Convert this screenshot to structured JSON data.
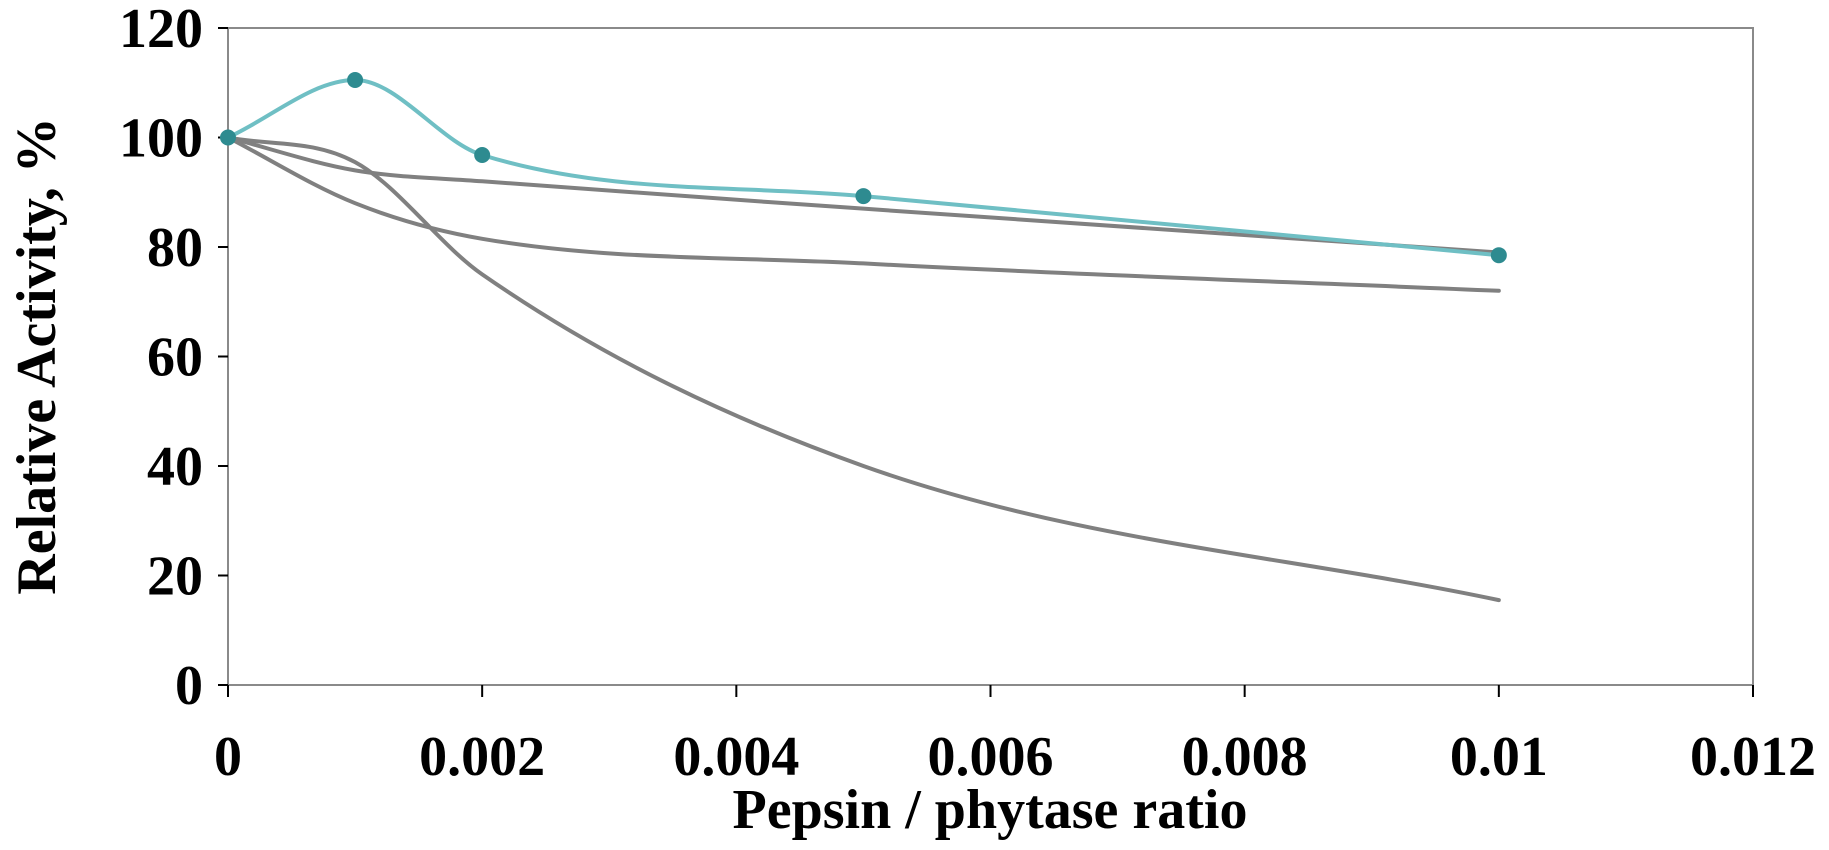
{
  "chart_data": {
    "type": "line",
    "title": "",
    "xlabel": "Pepsin / phytase ratio",
    "ylabel": "Relative Activity, %",
    "xlim": [
      0,
      0.012
    ],
    "ylim": [
      0,
      120
    ],
    "grid": false,
    "legend": "none",
    "x_ticks": [
      "0",
      "0.002",
      "0.004",
      "0.006",
      "0.008",
      "0.01",
      "0.012"
    ],
    "y_ticks": [
      "0",
      "20",
      "40",
      "60",
      "80",
      "100",
      "120"
    ],
    "x_tick_values": [
      0,
      0.002,
      0.004,
      0.006,
      0.008,
      0.01,
      0.012
    ],
    "y_tick_values": [
      0,
      20,
      40,
      60,
      80,
      100,
      120
    ],
    "series": [
      {
        "color": "#6fbfc4",
        "marker_color": "#2e8b90",
        "markers": true,
        "x": [
          0,
          0.001,
          0.002,
          0.005,
          0.01
        ],
        "y": [
          100,
          110.5,
          96.8,
          89.3,
          78.5
        ]
      },
      {
        "color": "#808080",
        "markers": false,
        "x": [
          0,
          0.001,
          0.002,
          0.005,
          0.01
        ],
        "y": [
          100,
          94.0,
          92.0,
          87.0,
          79.0
        ]
      },
      {
        "color": "#808080",
        "markers": false,
        "x": [
          0,
          0.001,
          0.002,
          0.005,
          0.01
        ],
        "y": [
          100,
          88.0,
          81.5,
          77.0,
          72.0
        ]
      },
      {
        "color": "#808080",
        "markers": false,
        "x": [
          0,
          0.001,
          0.002,
          0.005,
          0.01
        ],
        "y": [
          100,
          95.5,
          75.0,
          40.0,
          15.5
        ]
      }
    ]
  }
}
